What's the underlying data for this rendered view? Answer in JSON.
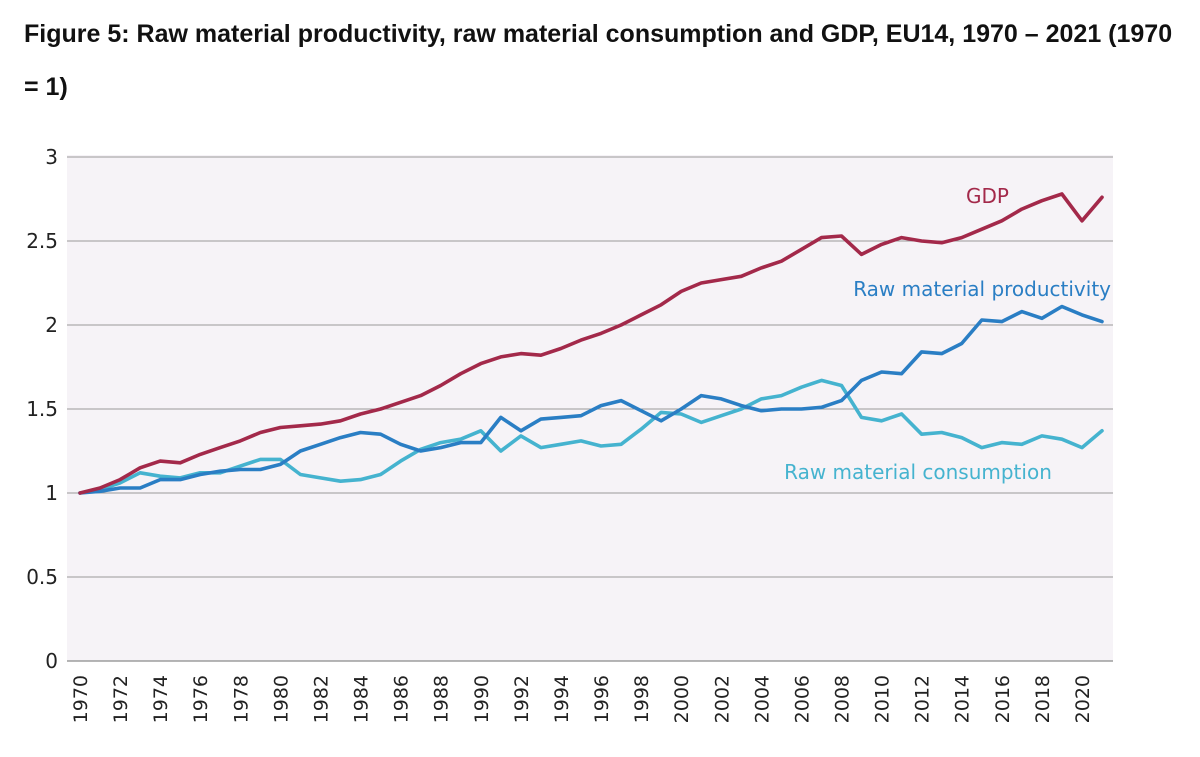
{
  "figure": {
    "title": "Figure 5: Raw material productivity, raw material consumption and GDP, EU14, 1970 – 2021 (1970 = 1)"
  },
  "chart_data": {
    "type": "line",
    "title": "Figure 5: Raw material productivity, raw material consumption and GDP, EU14, 1970 – 2021 (1970 = 1)",
    "xlabel": "",
    "ylabel": "",
    "x": [
      1970,
      1971,
      1972,
      1973,
      1974,
      1975,
      1976,
      1977,
      1978,
      1979,
      1980,
      1981,
      1982,
      1983,
      1984,
      1985,
      1986,
      1987,
      1988,
      1989,
      1990,
      1991,
      1992,
      1993,
      1994,
      1995,
      1996,
      1997,
      1998,
      1999,
      2000,
      2001,
      2002,
      2003,
      2004,
      2005,
      2006,
      2007,
      2008,
      2009,
      2010,
      2011,
      2012,
      2013,
      2014,
      2015,
      2016,
      2017,
      2018,
      2019,
      2020,
      2021
    ],
    "xlim": [
      1970,
      2021
    ],
    "ylim": [
      0,
      3
    ],
    "yticks": [
      0,
      0.5,
      1,
      1.5,
      2,
      2.5,
      3
    ],
    "ytick_labels": [
      "0",
      "0.5",
      "1",
      "1.5",
      "2",
      "2.5",
      "3"
    ],
    "xticks": [
      1970,
      1972,
      1974,
      1976,
      1978,
      1980,
      1982,
      1984,
      1986,
      1988,
      1990,
      1992,
      1994,
      1996,
      1998,
      2000,
      2002,
      2004,
      2006,
      2008,
      2010,
      2012,
      2014,
      2016,
      2018,
      2020
    ],
    "xtick_labels": [
      "1970",
      "1972",
      "1974",
      "1976",
      "1978",
      "1980",
      "1982",
      "1984",
      "1986",
      "1988",
      "1990",
      "1992",
      "1994",
      "1996",
      "1998",
      "2000",
      "2002",
      "2004",
      "2006",
      "2008",
      "2010",
      "2012",
      "2014",
      "2016",
      "2018",
      "2020"
    ],
    "grid": true,
    "legend": "inline labels",
    "series": [
      {
        "name": "GDP",
        "color": "#a3294a",
        "values": [
          1.0,
          1.03,
          1.08,
          1.15,
          1.19,
          1.18,
          1.23,
          1.27,
          1.31,
          1.36,
          1.39,
          1.4,
          1.41,
          1.43,
          1.47,
          1.5,
          1.54,
          1.58,
          1.64,
          1.71,
          1.77,
          1.81,
          1.83,
          1.82,
          1.86,
          1.91,
          1.95,
          2.0,
          2.06,
          2.12,
          2.2,
          2.25,
          2.27,
          2.29,
          2.34,
          2.38,
          2.45,
          2.52,
          2.53,
          2.42,
          2.48,
          2.52,
          2.5,
          2.49,
          2.52,
          2.57,
          2.62,
          2.69,
          2.74,
          2.78,
          2.62,
          2.76
        ]
      },
      {
        "name": "Raw material productivity",
        "color": "#2a7ec4",
        "values": [
          1.0,
          1.01,
          1.03,
          1.03,
          1.08,
          1.08,
          1.11,
          1.13,
          1.14,
          1.14,
          1.17,
          1.25,
          1.29,
          1.33,
          1.36,
          1.35,
          1.29,
          1.25,
          1.27,
          1.3,
          1.3,
          1.45,
          1.37,
          1.44,
          1.45,
          1.46,
          1.52,
          1.55,
          1.49,
          1.43,
          1.5,
          1.58,
          1.56,
          1.52,
          1.49,
          1.5,
          1.5,
          1.51,
          1.55,
          1.67,
          1.72,
          1.71,
          1.84,
          1.83,
          1.89,
          2.03,
          2.02,
          2.08,
          2.04,
          2.11,
          2.06,
          2.02
        ]
      },
      {
        "name": "Raw material consumption",
        "color": "#45b3cf",
        "values": [
          1.0,
          1.02,
          1.06,
          1.12,
          1.1,
          1.09,
          1.12,
          1.12,
          1.16,
          1.2,
          1.2,
          1.11,
          1.09,
          1.07,
          1.08,
          1.11,
          1.19,
          1.26,
          1.3,
          1.32,
          1.37,
          1.25,
          1.34,
          1.27,
          1.29,
          1.31,
          1.28,
          1.29,
          1.38,
          1.48,
          1.47,
          1.42,
          1.46,
          1.5,
          1.56,
          1.58,
          1.63,
          1.67,
          1.64,
          1.45,
          1.43,
          1.47,
          1.35,
          1.36,
          1.33,
          1.27,
          1.3,
          1.29,
          1.34,
          1.32,
          1.27,
          1.37
        ]
      }
    ]
  }
}
